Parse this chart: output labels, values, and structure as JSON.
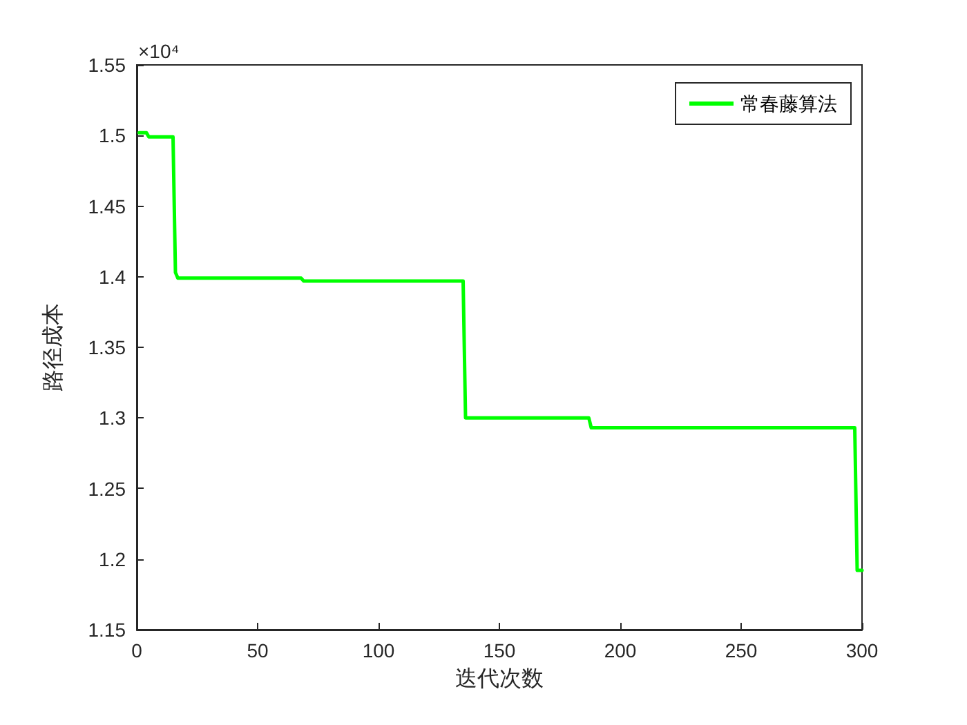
{
  "chart_data": {
    "type": "line",
    "xlabel": "迭代次数",
    "ylabel": "路径成本",
    "annotations": [
      "×10⁴"
    ],
    "x": [
      1,
      4,
      5,
      15,
      16,
      17,
      68,
      69,
      135,
      136,
      187,
      188,
      297,
      298,
      300
    ],
    "series": [
      {
        "name": "常春藤算法",
        "color": "#00ff00",
        "values": [
          1.502,
          1.502,
          1.499,
          1.499,
          1.403,
          1.399,
          1.399,
          1.397,
          1.397,
          1.3,
          1.3,
          1.293,
          1.293,
          1.192,
          1.192
        ]
      }
    ],
    "xlim": [
      0,
      300
    ],
    "xticks": [
      0,
      50,
      100,
      150,
      200,
      250,
      300
    ],
    "ylim": [
      1.15,
      1.55
    ],
    "yticks": [
      1.15,
      1.2,
      1.25,
      1.3,
      1.35,
      1.4,
      1.45,
      1.5,
      1.55
    ],
    "grid": false,
    "legend": "top right",
    "marker": "none",
    "line_style": "solid"
  }
}
